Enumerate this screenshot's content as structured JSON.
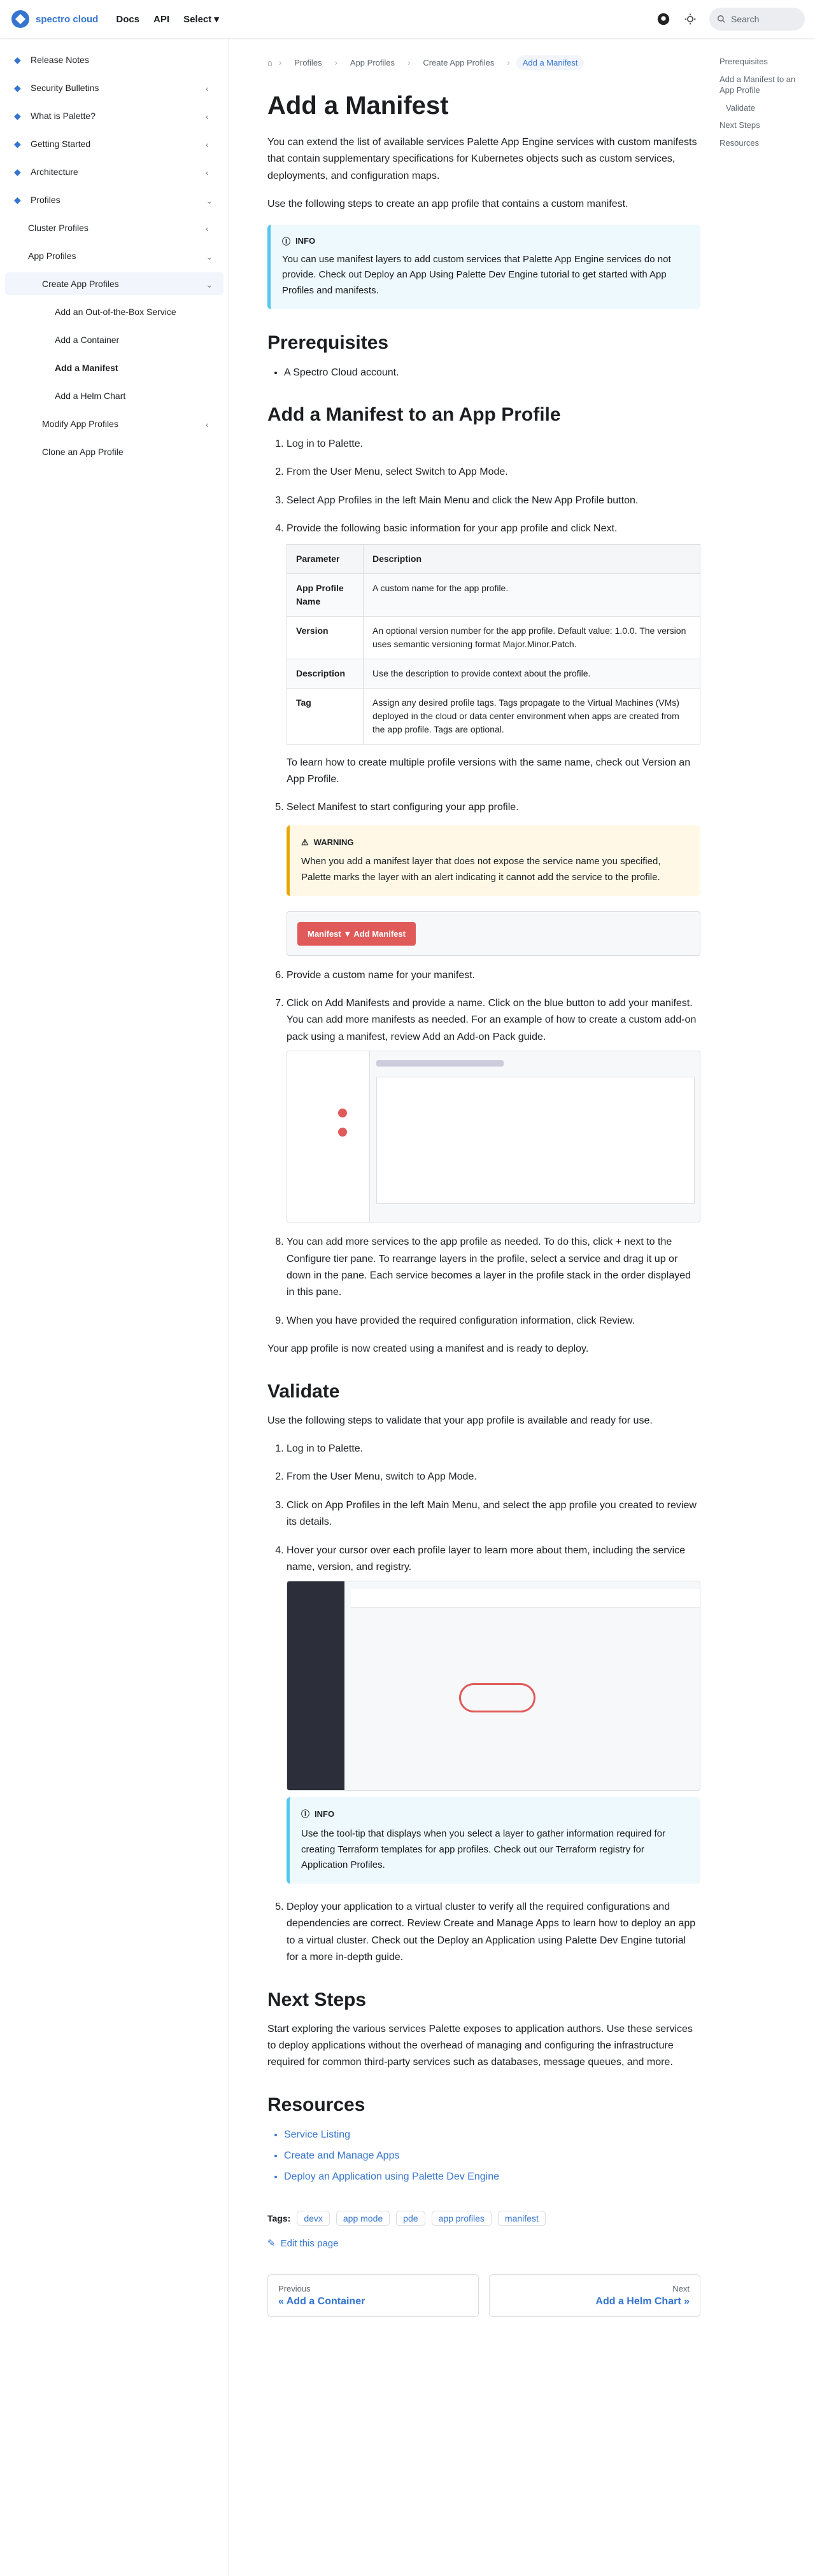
{
  "navbar": {
    "brand": "spectro cloud",
    "links": [
      "Docs",
      "API",
      "Select ▾"
    ],
    "search_placeholder": "Search"
  },
  "sidebar": {
    "items": [
      {
        "label": "Release Notes"
      },
      {
        "label": "Security Bulletins"
      },
      {
        "label": "What is Palette?"
      },
      {
        "label": "Getting Started"
      },
      {
        "label": "Architecture"
      },
      {
        "label": "Profiles"
      },
      {
        "label": "Cluster Profiles"
      },
      {
        "label": "App Profiles"
      },
      {
        "label": "Create App Profiles"
      },
      {
        "label": "Add an Out-of-the-Box Service"
      },
      {
        "label": "Add a Container"
      },
      {
        "label": "Add a Manifest"
      },
      {
        "label": "Add a Helm Chart"
      },
      {
        "label": "Modify App Profiles"
      },
      {
        "label": "Clone an App Profile"
      }
    ]
  },
  "breadcrumbs": [
    "Profiles",
    "App Profiles",
    "Create App Profiles",
    "Add a Manifest"
  ],
  "toc": [
    "Prerequisites",
    "Add a Manifest to an App Profile",
    "Validate",
    "Next Steps",
    "Resources"
  ],
  "page": {
    "title": "Add a Manifest",
    "intro1": "You can extend the list of available services Palette App Engine services with custom manifests that contain supplementary specifications for Kubernetes objects such as custom services, deployments, and configuration maps.",
    "intro2": "Use the following steps to create an app profile that contains a custom manifest.",
    "info_label": "Info",
    "info_text": "You can use manifest layers to add custom services that Palette App Engine services do not provide. Check out Deploy an App Using Palette Dev Engine tutorial to get started with App Profiles and manifests.",
    "prereq_heading": "Prerequisites",
    "prereq_items": [
      "A Spectro Cloud account."
    ],
    "add_heading": "Add a Manifest to an App Profile",
    "steps_a": [
      "Log in to Palette.",
      "From the User Menu, select Switch to App Mode.",
      "Select App Profiles in the left Main Menu and click the New App Profile button.",
      "Provide the following basic information for your app profile and click Next."
    ],
    "table_headers": [
      "Parameter",
      "Description"
    ],
    "table_rows": [
      [
        "App Profile Name",
        "A custom name for the app profile."
      ],
      [
        "Version",
        "An optional version number for the app profile. Default value: 1.0.0. The version uses semantic versioning format Major.Minor.Patch."
      ],
      [
        "Description",
        "Use the description to provide context about the profile."
      ],
      [
        "Tag",
        "Assign any desired profile tags. Tags propagate to the Virtual Machines (VMs) deployed in the cloud or data center environment when apps are created from the app profile. Tags are optional."
      ]
    ],
    "table_note": "To learn how to create multiple profile versions with the same name, check out Version an App Profile.",
    "step5": "Select Manifest to start configuring your app profile.",
    "warn_label": "Warning",
    "warn_text": "When you add a manifest layer that does not expose the service name you specified, Palette marks the layer with an alert indicating it cannot add the service to the profile.",
    "mock_button": "Manifest ▼ Add Manifest",
    "steps_b": [
      "Provide a custom name for your manifest.",
      "Click on Add Manifests and provide a name. Click on the blue button to add your manifest. You can add more manifests as needed. For an example of how to create a custom add-on pack using a manifest, review Add an Add-on Pack guide.",
      "You can add more services to the app profile as needed. To do this, click + next to the Configure tier pane. To rearrange layers in the profile, select a service and drag it up or down in the pane. Each service becomes a layer in the profile stack in the order displayed in this pane.",
      "When you have provided the required configuration information, click Review."
    ],
    "created_note": "Your app profile is now created using a manifest and is ready to deploy.",
    "validate_heading": "Validate",
    "validate_intro": "Use the following steps to validate that your app profile is available and ready for use.",
    "steps_c": [
      "Log in to Palette.",
      "From the User Menu, switch to App Mode.",
      "Click on App Profiles in the left Main Menu, and select the app profile you created to review its details.",
      "Hover your cursor over each profile layer to learn more about them, including the service name, version, and registry."
    ],
    "info2_label": "Info",
    "info2_text": "Use the tool-tip that displays when you select a layer to gather information required for creating Terraform templates for app profiles. Check out our Terraform registry for Application Profiles.",
    "step_c5": "Deploy your application to a virtual cluster to verify all the required configurations and dependencies are correct. Review Create and Manage Apps to learn how to deploy an app to a virtual cluster. Check out the Deploy an Application using Palette Dev Engine tutorial for a more in-depth guide.",
    "next_heading": "Next Steps",
    "next_text": "Start exploring the various services Palette exposes to application authors. Use these services to deploy applications without the overhead of managing and configuring the infrastructure required for common third-party services such as databases, message queues, and more.",
    "res_heading": "Resources",
    "res_items": [
      "Service Listing",
      "Create and Manage Apps",
      "Deploy an Application using Palette Dev Engine"
    ],
    "tags_label": "Tags:",
    "tags": [
      "devx",
      "app mode",
      "pde",
      "app profiles",
      "manifest"
    ],
    "edit": "Edit this page",
    "prev_sub": "Previous",
    "prev_label": "« Add a Container",
    "next_sub": "Next",
    "next_label": "Add a Helm Chart »"
  },
  "colors": {
    "accent": "#3575cf",
    "info": "#54c7ec",
    "warning": "#e6a700"
  }
}
